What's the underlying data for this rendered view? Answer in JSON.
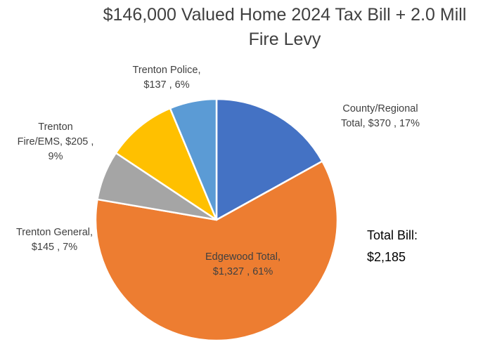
{
  "chart_data": {
    "type": "pie",
    "title_line1": "$146,000 Valued Home 2024 Tax Bill + 2.0 Mill",
    "title_line2": "Fire Levy",
    "slices": [
      {
        "name": "County/Regional Total",
        "value": 370,
        "percent": 17,
        "color": "#4472C4",
        "label_lines": [
          "County/Regional",
          "Total,  $370 , 17%"
        ]
      },
      {
        "name": "Edgewood Total",
        "value": 1327,
        "percent": 61,
        "color": "#ED7D31",
        "label_lines": [
          "Edgewood Total,",
          "$1,327 , 61%"
        ]
      },
      {
        "name": "Trenton General",
        "value": 145,
        "percent": 7,
        "color": "#A5A5A5",
        "label_lines": [
          "Trenton General,",
          "$145 , 7%"
        ]
      },
      {
        "name": "Trenton Fire/EMS",
        "value": 205,
        "percent": 9,
        "color": "#FFC000",
        "label_lines": [
          "Trenton",
          "Fire/EMS,  $205 ,",
          "9%"
        ]
      },
      {
        "name": "Trenton Police",
        "value": 137,
        "percent": 6,
        "color": "#5B9BD5",
        "label_lines": [
          "Trenton Police,",
          "$137 , 6%"
        ]
      }
    ],
    "total_label": "Total Bill:",
    "total_value": "$2,185"
  }
}
